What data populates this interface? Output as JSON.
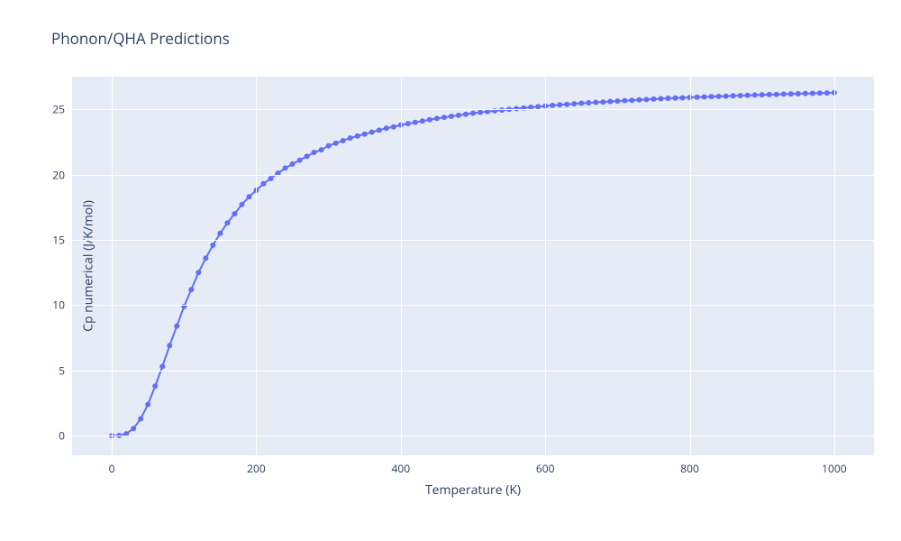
{
  "chart": {
    "type": "line-scatter",
    "title": "Phonon/QHA Predictions",
    "title_fontsize": 17,
    "title_color": "#2a3f5f",
    "background_color": "#ffffff",
    "plot_background_color": "#e5ecf6",
    "grid_color": "#ffffff",
    "font_family": "Open Sans, Arial, sans-serif",
    "tick_font_color": "#2a3f5f",
    "tick_fontsize": 12,
    "axis_label_fontsize": 14,
    "xlabel": "Temperature (K)",
    "ylabel": "Cp numerical (J/K/mol)",
    "xlim": [
      -55,
      1055
    ],
    "ylim": [
      -1.5,
      27.5
    ],
    "xticks": [
      0,
      200,
      400,
      600,
      800,
      1000
    ],
    "yticks": [
      0,
      5,
      10,
      15,
      20,
      25
    ],
    "series": {
      "color": "#636efa",
      "line_width": 2,
      "marker_radius": 3,
      "x": [
        0,
        10,
        20,
        30,
        40,
        50,
        60,
        70,
        80,
        90,
        100,
        110,
        120,
        130,
        140,
        150,
        160,
        170,
        180,
        190,
        200,
        210,
        220,
        230,
        240,
        250,
        260,
        270,
        280,
        290,
        300,
        310,
        320,
        330,
        340,
        350,
        360,
        370,
        380,
        390,
        400,
        410,
        420,
        430,
        440,
        450,
        460,
        470,
        480,
        490,
        500,
        510,
        520,
        530,
        540,
        550,
        560,
        570,
        580,
        590,
        600,
        610,
        620,
        630,
        640,
        650,
        660,
        670,
        680,
        690,
        700,
        710,
        720,
        730,
        740,
        750,
        760,
        770,
        780,
        790,
        800,
        810,
        820,
        830,
        840,
        850,
        860,
        870,
        880,
        890,
        900,
        910,
        920,
        930,
        940,
        950,
        960,
        970,
        980,
        990,
        1000
      ],
      "y": [
        0.0,
        0.02,
        0.15,
        0.55,
        1.3,
        2.4,
        3.8,
        5.3,
        6.9,
        8.4,
        9.9,
        11.2,
        12.5,
        13.6,
        14.6,
        15.5,
        16.3,
        17.0,
        17.7,
        18.3,
        18.8,
        19.3,
        19.7,
        20.1,
        20.5,
        20.8,
        21.1,
        21.4,
        21.7,
        21.9,
        22.2,
        22.4,
        22.6,
        22.8,
        22.95,
        23.1,
        23.25,
        23.4,
        23.55,
        23.65,
        23.8,
        23.9,
        24.0,
        24.1,
        24.2,
        24.3,
        24.38,
        24.46,
        24.54,
        24.62,
        24.7,
        24.76,
        24.82,
        24.88,
        24.94,
        25.0,
        25.05,
        25.1,
        25.15,
        25.2,
        25.25,
        25.3,
        25.34,
        25.38,
        25.42,
        25.46,
        25.5,
        25.53,
        25.56,
        25.6,
        25.63,
        25.66,
        25.69,
        25.72,
        25.75,
        25.78,
        25.81,
        25.84,
        25.86,
        25.88,
        25.91,
        25.93,
        25.95,
        25.97,
        25.99,
        26.01,
        26.03,
        26.05,
        26.07,
        26.09,
        26.11,
        26.13,
        26.14,
        26.16,
        26.18,
        26.19,
        26.21,
        26.22,
        26.24,
        26.25,
        26.27
      ]
    }
  }
}
